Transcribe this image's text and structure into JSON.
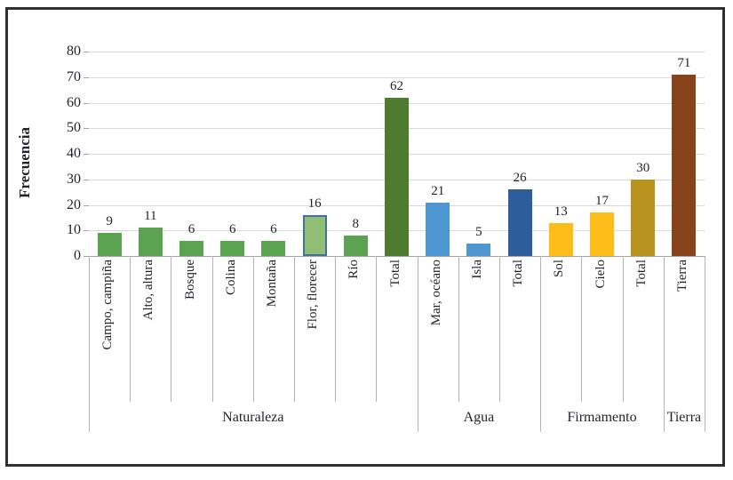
{
  "chart_data": {
    "type": "bar",
    "title": "",
    "ylabel": "Frecuencia",
    "xlabel": "",
    "ylim": [
      0,
      80
    ],
    "ytick_step": 10,
    "grid": true,
    "legend_position": "none",
    "categories": [
      "Campo, campiña",
      "Alto, altura",
      "Bosque",
      "Colina",
      "Montaña",
      "Flor, florecer",
      "Río",
      "Total",
      "Mar, océano",
      "Isla",
      "Total",
      "Sol",
      "Cielo",
      "Total",
      "Tierra"
    ],
    "values": [
      9,
      11,
      6,
      6,
      6,
      16,
      8,
      62,
      21,
      5,
      26,
      13,
      17,
      30,
      71
    ],
    "value_labels_shown": true,
    "bar_colors": [
      "#5BA350",
      "#5BA350",
      "#5BA350",
      "#5BA350",
      "#5BA350",
      "#8FBE74",
      "#5BA350",
      "#4E7B30",
      "#4E96D2",
      "#4E96D2",
      "#2D5E9B",
      "#FCBD18",
      "#FCBD18",
      "#B7931F",
      "#87431A"
    ],
    "highlight": {
      "index": 5,
      "border_color": "#41719C"
    },
    "groups": [
      {
        "label": "Naturaleza",
        "span": 8
      },
      {
        "label": "Agua",
        "span": 3
      },
      {
        "label": "Firmamento",
        "span": 3
      },
      {
        "label": "Tierra",
        "span": 1
      }
    ]
  },
  "style_colors": {
    "gridline": "#d9d9d9",
    "axis": "#a6a6a6",
    "separator": "#b3b3b3",
    "text": "#23232e",
    "frame_border": "#2f2f2f"
  }
}
